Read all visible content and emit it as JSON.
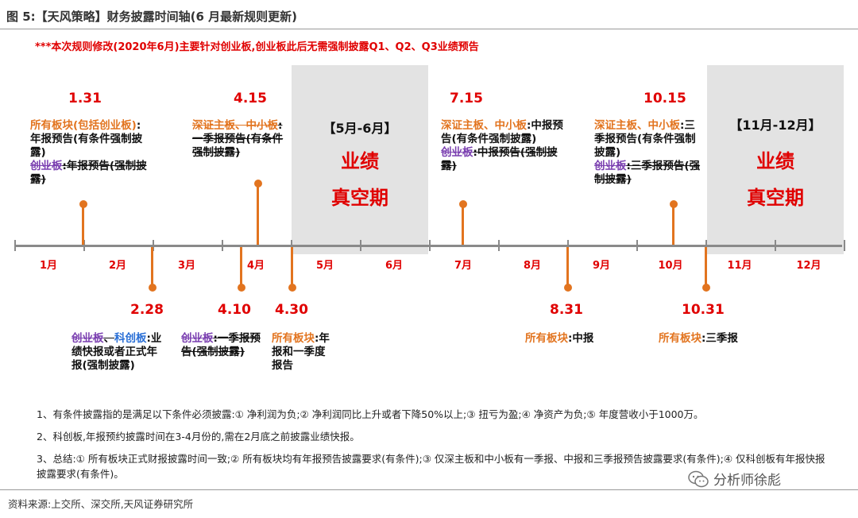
{
  "header": {
    "title": "图 5:【天风策略】财务披露时间轴(6 月最新规则更新)",
    "notice": "***本次规则修改(2020年6月)主要针对创业板,创业板此后无需强制披露Q1、Q2、Q3业绩预告"
  },
  "months": [
    "1月",
    "2月",
    "3月",
    "4月",
    "5月",
    "6月",
    "7月",
    "8月",
    "9月",
    "10月",
    "11月",
    "12月"
  ],
  "vacuum_periods": [
    {
      "header": "【5月-6月】",
      "line1": "业绩",
      "line2": "真空期"
    },
    {
      "header": "【11月-12月】",
      "line1": "业绩",
      "line2": "真空期"
    }
  ],
  "events_above": [
    {
      "date": "1.31",
      "a": "所有板块(包括创业板)",
      "b": ":年报预告(有条件强制披露)",
      "c": "创业板",
      "d": ":年报预告(强制披露)"
    },
    {
      "date": "4.15",
      "a": "深证主板、中小板",
      "b": ":一季报预告(有条件强制披露)"
    },
    {
      "date": "7.15",
      "a": "深证主板、中小板",
      "b": ":中报预告(有条件强制披露)",
      "c": "创业板",
      "d": ":中报预告(强制披露)"
    },
    {
      "date": "10.15",
      "a": "深证主板、中小板",
      "b": ":三季报预告(有条件强制披露)",
      "c": "创业板",
      "d": ":三季报预告(强制披露)"
    }
  ],
  "events_below": [
    {
      "date": "2.28",
      "a": "创业板",
      "a2": "、",
      "a3": "科创板",
      "b": ":业绩快报或者正式年报(强制披露)"
    },
    {
      "date": "4.10",
      "a": "创业板",
      "b": ":一季报预告(强制披露)"
    },
    {
      "date": "4.30",
      "a": "所有板块",
      "b": ":年报和一季度报告"
    },
    {
      "date": "8.31",
      "a": "所有板块",
      "b": ":中报"
    },
    {
      "date": "10.31",
      "a": "所有板块",
      "b": ":三季报"
    }
  ],
  "notes": [
    "1、有条件披露指的是满足以下条件必须披露:① 净利润为负;② 净利润同比上升或者下降50%以上;③ 扭亏为盈;④ 净资产为负;⑤ 年度营收小于1000万。",
    "2、科创板,年报预约披露时间在3-4月份的,需在2月底之前披露业绩快报。",
    "3、总结:① 所有板块正式财报披露时间一致;② 所有板块均有年报预告披露要求(有条件);③ 仅深主板和中小板有一季报、中报和三季报预告披露要求(有条件);④ 仅科创板有年报快报披露要求(有条件)。"
  ],
  "source": "资料来源:上交所、深交所,天风证券研究所",
  "watermark": "分析师徐彪"
}
